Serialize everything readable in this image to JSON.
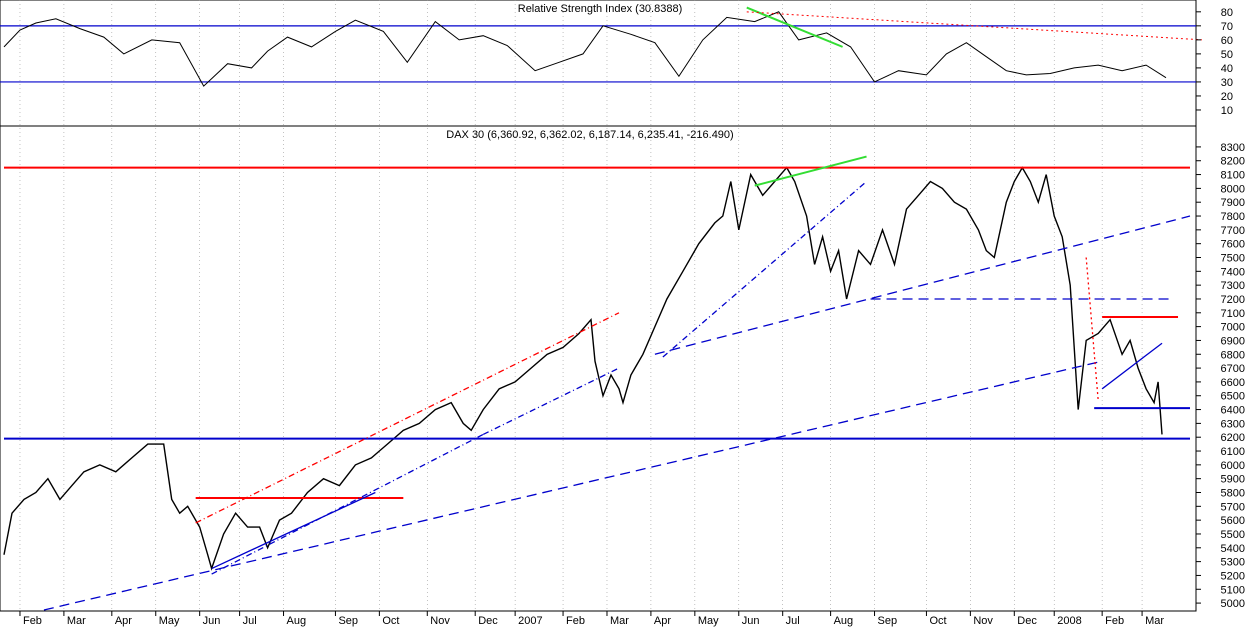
{
  "colors": {
    "price": "#000000",
    "support": "#0000cc",
    "resistance": "#ff0000",
    "green": "#33dd33",
    "grid": "#999999",
    "rsi": "#000000"
  },
  "chart_data": [
    {
      "type": "line",
      "title": "Relative Strength Index (30.8388)",
      "ylim": [
        0,
        87
      ],
      "y_ticks": [
        10,
        20,
        30,
        40,
        50,
        60,
        70,
        80
      ],
      "reference_lines": [
        30,
        70
      ],
      "series": [
        {
          "name": "RSI",
          "points": [
            [
              0,
              55
            ],
            [
              4,
              67
            ],
            [
              8,
              72
            ],
            [
              13,
              75
            ],
            [
              19,
              68
            ],
            [
              25,
              62
            ],
            [
              30,
              50
            ],
            [
              37,
              60
            ],
            [
              44,
              58
            ],
            [
              50,
              27
            ],
            [
              56,
              43
            ],
            [
              62,
              40
            ],
            [
              66,
              52
            ],
            [
              71,
              62
            ],
            [
              77,
              55
            ],
            [
              83,
              66
            ],
            [
              88,
              74
            ],
            [
              95,
              66
            ],
            [
              101,
              44
            ],
            [
              108,
              73
            ],
            [
              114,
              60
            ],
            [
              120,
              63
            ],
            [
              126,
              56
            ],
            [
              133,
              38
            ],
            [
              139,
              44
            ],
            [
              145,
              50
            ],
            [
              150,
              70
            ],
            [
              157,
              64
            ],
            [
              163,
              58
            ],
            [
              169,
              34
            ],
            [
              175,
              60
            ],
            [
              181,
              76
            ],
            [
              188,
              73
            ],
            [
              194,
              80
            ],
            [
              199,
              60
            ],
            [
              206,
              65
            ],
            [
              212,
              55
            ],
            [
              218,
              30
            ],
            [
              224,
              38
            ],
            [
              231,
              35
            ],
            [
              236,
              50
            ],
            [
              241,
              58
            ],
            [
              246,
              48
            ],
            [
              251,
              38
            ],
            [
              256,
              35
            ],
            [
              262,
              36
            ],
            [
              268,
              40
            ],
            [
              274,
              42
            ],
            [
              280,
              38
            ],
            [
              286,
              42
            ],
            [
              291,
              33
            ]
          ]
        }
      ]
    },
    {
      "type": "line",
      "title": "DAX 30 (6,360.92, 6,362.02, 6,187.14, 6,235.41, -216.490)",
      "ylim": [
        4950,
        8350
      ],
      "y_ticks": [
        5000,
        5100,
        5200,
        5300,
        5400,
        5500,
        5600,
        5700,
        5800,
        5900,
        6000,
        6100,
        6200,
        6300,
        6400,
        6500,
        6600,
        6700,
        6800,
        6900,
        7000,
        7100,
        7200,
        7300,
        7400,
        7500,
        7600,
        7700,
        7800,
        7900,
        8000,
        8100,
        8200,
        8300
      ],
      "x_ticks": [
        {
          "label": "Feb",
          "week": 4
        },
        {
          "label": "Mar",
          "week": 15
        },
        {
          "label": "Apr",
          "week": 27
        },
        {
          "label": "May",
          "week": 38
        },
        {
          "label": "Jun",
          "week": 49
        },
        {
          "label": "Jul",
          "week": 59
        },
        {
          "label": "Aug",
          "week": 70
        },
        {
          "label": "Sep",
          "week": 83
        },
        {
          "label": "Oct",
          "week": 94
        },
        {
          "label": "Nov",
          "week": 106
        },
        {
          "label": "Dec",
          "week": 118
        },
        {
          "label": "2007",
          "week": 128
        },
        {
          "label": "Feb",
          "week": 140
        },
        {
          "label": "Mar",
          "week": 151
        },
        {
          "label": "Apr",
          "week": 162
        },
        {
          "label": "May",
          "week": 173
        },
        {
          "label": "Jun",
          "week": 184
        },
        {
          "label": "Jul",
          "week": 195
        },
        {
          "label": "Aug",
          "week": 207
        },
        {
          "label": "Sep",
          "week": 218
        },
        {
          "label": "Oct",
          "week": 231
        },
        {
          "label": "Nov",
          "week": 242
        },
        {
          "label": "Dec",
          "week": 253
        },
        {
          "label": "2008",
          "week": 263
        },
        {
          "label": "Feb",
          "week": 275
        },
        {
          "label": "Mar",
          "week": 285
        }
      ],
      "series": [
        {
          "name": "DAX 30",
          "points": [
            [
              0,
              5350
            ],
            [
              2,
              5650
            ],
            [
              5,
              5750
            ],
            [
              8,
              5800
            ],
            [
              11,
              5900
            ],
            [
              14,
              5750
            ],
            [
              17,
              5850
            ],
            [
              20,
              5950
            ],
            [
              24,
              6000
            ],
            [
              28,
              5950
            ],
            [
              32,
              6050
            ],
            [
              36,
              6150
            ],
            [
              40,
              6150
            ],
            [
              42,
              5750
            ],
            [
              44,
              5650
            ],
            [
              46,
              5700
            ],
            [
              49,
              5550
            ],
            [
              51,
              5350
            ],
            [
              52,
              5250
            ],
            [
              55,
              5500
            ],
            [
              58,
              5650
            ],
            [
              61,
              5550
            ],
            [
              64,
              5550
            ],
            [
              66,
              5400
            ],
            [
              69,
              5600
            ],
            [
              72,
              5650
            ],
            [
              76,
              5800
            ],
            [
              80,
              5900
            ],
            [
              84,
              5850
            ],
            [
              88,
              6000
            ],
            [
              92,
              6050
            ],
            [
              96,
              6150
            ],
            [
              100,
              6250
            ],
            [
              104,
              6300
            ],
            [
              108,
              6400
            ],
            [
              112,
              6450
            ],
            [
              115,
              6300
            ],
            [
              117,
              6250
            ],
            [
              120,
              6400
            ],
            [
              124,
              6550
            ],
            [
              128,
              6600
            ],
            [
              132,
              6700
            ],
            [
              136,
              6800
            ],
            [
              140,
              6850
            ],
            [
              144,
              6950
            ],
            [
              147,
              7050
            ],
            [
              148,
              6750
            ],
            [
              150,
              6500
            ],
            [
              152,
              6650
            ],
            [
              154,
              6550
            ],
            [
              155,
              6450
            ],
            [
              157,
              6650
            ],
            [
              160,
              6800
            ],
            [
              163,
              7000
            ],
            [
              166,
              7200
            ],
            [
              170,
              7400
            ],
            [
              174,
              7600
            ],
            [
              178,
              7750
            ],
            [
              180,
              7800
            ],
            [
              182,
              8050
            ],
            [
              184,
              7700
            ],
            [
              187,
              8100
            ],
            [
              190,
              7950
            ],
            [
              193,
              8050
            ],
            [
              196,
              8150
            ],
            [
              198,
              8050
            ],
            [
              201,
              7800
            ],
            [
              203,
              7450
            ],
            [
              205,
              7650
            ],
            [
              207,
              7400
            ],
            [
              209,
              7550
            ],
            [
              211,
              7200
            ],
            [
              214,
              7550
            ],
            [
              217,
              7450
            ],
            [
              220,
              7700
            ],
            [
              223,
              7450
            ],
            [
              226,
              7850
            ],
            [
              229,
              7950
            ],
            [
              232,
              8050
            ],
            [
              235,
              8000
            ],
            [
              238,
              7900
            ],
            [
              241,
              7850
            ],
            [
              244,
              7700
            ],
            [
              246,
              7550
            ],
            [
              248,
              7500
            ],
            [
              251,
              7900
            ],
            [
              253,
              8050
            ],
            [
              255,
              8150
            ],
            [
              257,
              8050
            ],
            [
              259,
              7900
            ],
            [
              261,
              8100
            ],
            [
              263,
              7800
            ],
            [
              265,
              7650
            ],
            [
              267,
              7300
            ],
            [
              269,
              6400
            ],
            [
              271,
              6900
            ],
            [
              274,
              6950
            ],
            [
              277,
              7050
            ],
            [
              280,
              6800
            ],
            [
              282,
              6900
            ],
            [
              284,
              6700
            ],
            [
              286,
              6550
            ],
            [
              288,
              6450
            ],
            [
              289,
              6600
            ],
            [
              290,
              6220
            ]
          ]
        }
      ],
      "trendlines": [
        {
          "color": "support",
          "style": "solid",
          "points": [
            [
              0,
              6190
            ],
            [
              297,
              6190
            ]
          ]
        },
        {
          "color": "resistance",
          "style": "solid",
          "points": [
            [
              0,
              8150
            ],
            [
              297,
              8150
            ]
          ]
        },
        {
          "color": "resistance",
          "style": "solid",
          "points": [
            [
              48,
              5760
            ],
            [
              100,
              5760
            ]
          ]
        },
        {
          "color": "resistance",
          "style": "solid",
          "points": [
            [
              275,
              7070
            ],
            [
              294,
              7070
            ]
          ]
        },
        {
          "color": "resistance",
          "style": "dashdot",
          "points": [
            [
              48,
              5580
            ],
            [
              154,
              7100
            ]
          ]
        },
        {
          "color": "support",
          "style": "solid",
          "points": [
            [
              52,
              5250
            ],
            [
              93,
              5800
            ]
          ]
        },
        {
          "color": "support",
          "style": "dashdot",
          "points": [
            [
              52,
              5210
            ],
            [
              120,
              6220
            ]
          ]
        },
        {
          "color": "support",
          "style": "dashdot",
          "points": [
            [
              120,
              6220
            ],
            [
              154,
              6700
            ]
          ]
        },
        {
          "color": "support",
          "style": "dashdot",
          "points": [
            [
              165,
              6780
            ],
            [
              216,
              8050
            ]
          ]
        },
        {
          "color": "support",
          "style": "dash",
          "points": [
            [
              10,
              4950
            ],
            [
              275,
              6750
            ]
          ]
        },
        {
          "color": "support",
          "style": "dash",
          "points": [
            [
              163,
              6800
            ],
            [
              297,
              7800
            ]
          ]
        },
        {
          "color": "support",
          "style": "dash",
          "points": [
            [
              217,
              7200
            ],
            [
              292,
              7200
            ]
          ]
        },
        {
          "color": "support",
          "style": "solid",
          "points": [
            [
              273,
              6410
            ],
            [
              297,
              6410
            ]
          ]
        },
        {
          "color": "support",
          "style": "solid",
          "points": [
            [
              275,
              6550
            ],
            [
              290,
              6880
            ]
          ]
        },
        {
          "color": "green",
          "style": "solid",
          "points": [
            [
              188,
              8020
            ],
            [
              216,
              8230
            ]
          ]
        },
        {
          "color": "resistance",
          "style": "dot",
          "points": [
            [
              271,
              7500
            ],
            [
              274,
              6470
            ]
          ]
        }
      ],
      "rsi_lines": [
        {
          "color": "green",
          "style": "solid",
          "points": [
            [
              186,
              83
            ],
            [
              210,
              55
            ]
          ]
        },
        {
          "color": "resistance",
          "style": "dot",
          "points": [
            [
              186,
              80
            ],
            [
              300,
              60
            ]
          ]
        }
      ]
    }
  ]
}
